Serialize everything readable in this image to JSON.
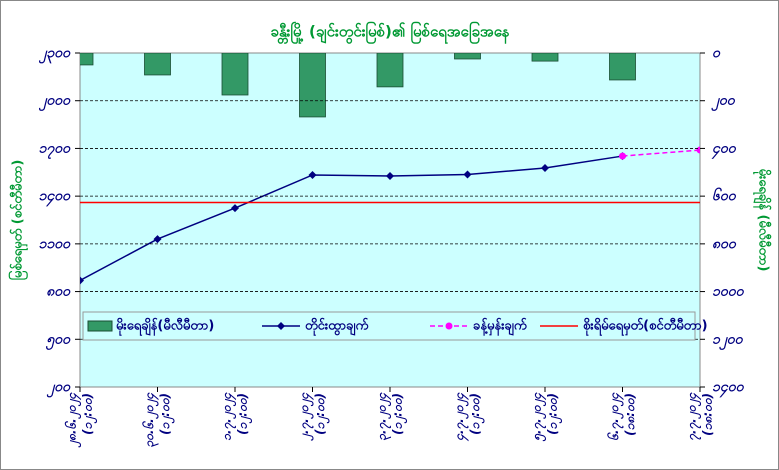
{
  "chart_data": {
    "type": "combo",
    "title": "ခန္တီးမြို့ (ချင်းတွင်းမြစ်)၏ မြစ်ရေအခြေအနေ",
    "y_label": "မြစ်ရေမှတ် (စင်တီမီတာ)",
    "y2_label": "မိုးရေချိန် (မီလီမီတာ)",
    "categories": [
      "၂၈.၆.၂၀၂၄",
      "၃၀.၆.၂၀၂၄",
      "၁.၇.၂၀၂၄",
      "၂.၇.၂၀၂၄",
      "၃.၇.၂၀၂၄",
      "၄.၇.၂၀၂၄",
      "၅.၇.၂၀၂၄",
      "၆.၇.၂၀၂၄",
      "၇.၇.၂၀၂၄"
    ],
    "times": [
      "(၁၂:၀၀)",
      "(၁၂:၀၀)",
      "(၁၂:၀၀)",
      "(၁၂:၀၀)",
      "(၁၂:၀၀)",
      "(၁၂:၀၀)",
      "(၁၂:၀၀)",
      "(၁၈:၀၀)",
      "(၁၈:၀၀)"
    ],
    "series": [
      {
        "name": "မိုးရေချိန်(မီလီမီတာ)",
        "kind": "bar",
        "axis": "y2",
        "color": "#339966",
        "values": [
          50,
          92,
          176,
          268,
          142,
          25,
          34,
          113,
          null
        ]
      },
      {
        "name": "တိုင်းထွာချက်",
        "kind": "line",
        "color": "#000080",
        "values": [
          870,
          1130,
          1325,
          1533,
          1527,
          1536,
          1577,
          1652,
          null
        ]
      },
      {
        "name": "ခန့်မှန်းချက်",
        "kind": "dashed",
        "color": "#ff00ff",
        "values": [
          null,
          null,
          null,
          null,
          null,
          null,
          null,
          1652,
          1690
        ]
      },
      {
        "name": "စိုးရိမ်ရေမှတ်(စင်တီမီတာ)",
        "kind": "hline",
        "color": "#ff0000",
        "value": 1360
      }
    ],
    "ylim": [
      200,
      2300
    ],
    "yticks": [
      {
        "value": 200,
        "label": "၂၀၀"
      },
      {
        "value": 500,
        "label": "၅၀၀"
      },
      {
        "value": 800,
        "label": "၈၀၀"
      },
      {
        "value": 1100,
        "label": "၁၁၀၀"
      },
      {
        "value": 1400,
        "label": "၁၄၀၀"
      },
      {
        "value": 1700,
        "label": "၁၇၀၀"
      },
      {
        "value": 2000,
        "label": "၂၀၀၀"
      },
      {
        "value": 2300,
        "label": "၂၃၀၀"
      }
    ],
    "y2lim": [
      0,
      1400
    ],
    "y2_inverted": true,
    "y2ticks": [
      {
        "value": 0,
        "label": "၀"
      },
      {
        "value": 200,
        "label": "၂၀၀"
      },
      {
        "value": 400,
        "label": "၄၀၀"
      },
      {
        "value": 600,
        "label": "၆၀၀"
      },
      {
        "value": 800,
        "label": "၈၀၀"
      },
      {
        "value": 1000,
        "label": "၁၀၀၀"
      },
      {
        "value": 1200,
        "label": "၁၂၀၀"
      },
      {
        "value": 1400,
        "label": "၁၄၀၀"
      }
    ],
    "grid": true,
    "background": "#ccffff"
  }
}
